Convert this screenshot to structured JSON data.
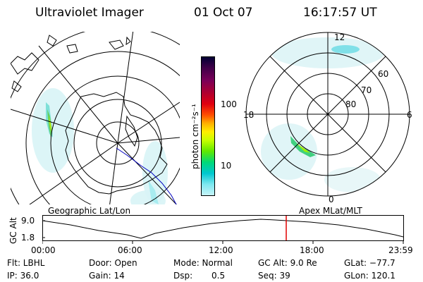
{
  "header": {
    "instrument": "Ultraviolet Imager",
    "date": "01 Oct 07",
    "time": "16:17:57 UT"
  },
  "geo_map": {
    "label": "Geographic Lat/Lon"
  },
  "colorbar": {
    "unit_label": "photon cm⁻²s⁻¹",
    "ticks": [
      "100",
      "10"
    ],
    "colors": [
      "#000033",
      "#400048",
      "#7a0058",
      "#b00030",
      "#e00010",
      "#ff5000",
      "#ffb000",
      "#ffee00",
      "#c8ff00",
      "#60e800",
      "#00d878",
      "#00c8d0",
      "#80e8f0",
      "#c8f4f8"
    ]
  },
  "polar_map": {
    "label": "Apex MLat/MLT",
    "mlt_labels": {
      "top": "12",
      "bottom": "0",
      "left": "18",
      "right": "6"
    },
    "lat_labels": [
      "60",
      "70",
      "80"
    ]
  },
  "alt_plot": {
    "ylabel": "GC Alt",
    "yticks": [
      "9.0",
      "1.8"
    ],
    "xticks": [
      "00:00",
      "06:00",
      "12:00",
      "18:00",
      "23:59"
    ],
    "cursor_color": "#e00000"
  },
  "info": {
    "flt": "Flt: LBHL",
    "ip": "IP: 36.0",
    "door": "Door: Open",
    "gain": "Gain: 14",
    "mode": "Mode: Normal",
    "dsp_label": "Dsp:",
    "dsp_value": "0.5",
    "gc_alt": "GC Alt: 9.0 Re",
    "seq": "Seq: 39",
    "glat": "GLat: −77.7",
    "glon": "GLon: 120.1"
  }
}
